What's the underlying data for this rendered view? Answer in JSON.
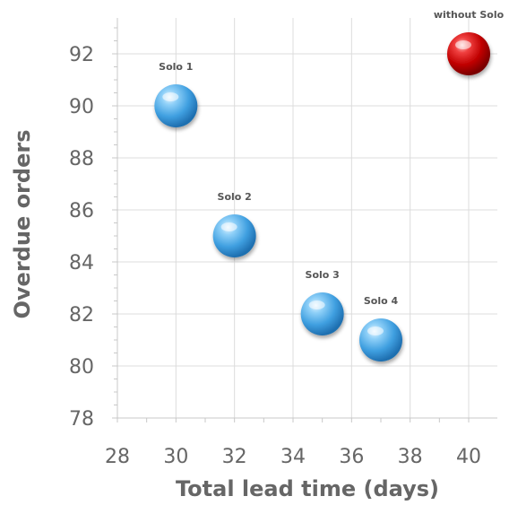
{
  "chart_data": {
    "type": "scatter",
    "title": "",
    "xlabel": "Total lead time (days)",
    "ylabel": "Overdue orders",
    "xlim": [
      28,
      40
    ],
    "ylim": [
      78,
      93
    ],
    "x_ticks": [
      28,
      30,
      32,
      34,
      36,
      38,
      40
    ],
    "y_ticks": [
      78,
      80,
      82,
      84,
      86,
      88,
      90,
      92
    ],
    "grid": true,
    "legend": "none",
    "points": [
      {
        "label": "Solo 1",
        "x": 30,
        "y": 90,
        "color": "#4aa8e8"
      },
      {
        "label": "Solo 2",
        "x": 32,
        "y": 85,
        "color": "#4aa8e8"
      },
      {
        "label": "Solo 3",
        "x": 35,
        "y": 82,
        "color": "#4aa8e8"
      },
      {
        "label": "Solo 4",
        "x": 37,
        "y": 81,
        "color": "#4aa8e8"
      },
      {
        "label": "without Solo",
        "x": 40,
        "y": 92,
        "color": "#cc0000"
      }
    ]
  }
}
